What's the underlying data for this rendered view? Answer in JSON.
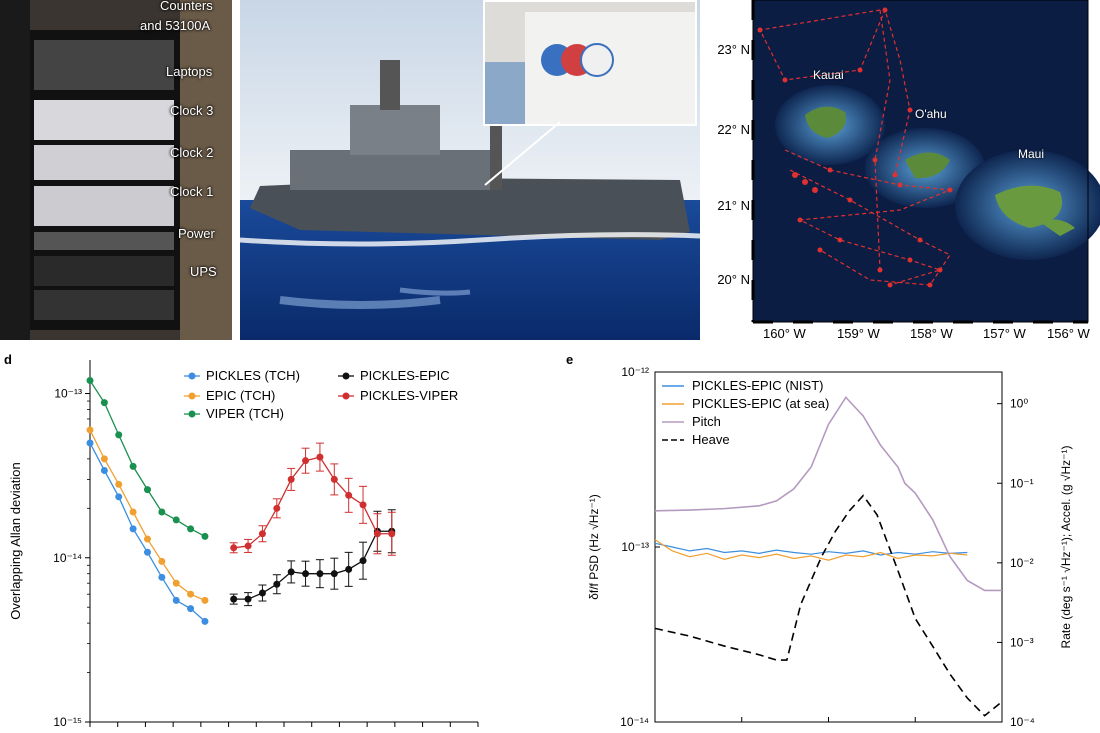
{
  "panel_a": {
    "labels": [
      "Counters",
      "and 53100A",
      "Laptops",
      "Clock 3",
      "Clock 2",
      "Clock 1",
      "Power",
      "UPS"
    ]
  },
  "panel_b": {
    "inset_logo": "icon-placeholder"
  },
  "panel_c": {
    "islands": [
      "Kauai",
      "O'ahu",
      "Maui"
    ],
    "lat_labels": [
      "23° N",
      "22° N",
      "21° N",
      "20° N"
    ],
    "lon_labels": [
      "160° W",
      "159° W",
      "158° W",
      "157° W",
      "156° W"
    ],
    "colors": {
      "track": "#e03030",
      "ocean_deep": "#0a1a40",
      "ocean_shallow": "#3a80c0"
    }
  },
  "chart_data": [
    {
      "panel": "d",
      "type": "scatter",
      "ylabel": "Overlapping Allan deviation",
      "yscale": "log",
      "ylim": [
        1e-15,
        1.6e-13
      ],
      "y_ticks": [
        {
          "value": 1e-13,
          "label": "10⁻¹³"
        },
        {
          "value": 1e-14,
          "label": "10⁻¹⁴"
        },
        {
          "value": 1e-15,
          "label": "10⁻¹⁵"
        }
      ],
      "x_index_range": [
        0,
        27
      ],
      "legend": "top",
      "series": [
        {
          "name": "PICKLES (TCH)",
          "color": "#3b8ee0",
          "x": [
            0,
            1,
            2,
            3,
            4,
            5,
            6,
            7,
            8
          ],
          "y": [
            5e-14,
            3.4e-14,
            2.35e-14,
            1.5e-14,
            1.08e-14,
            7.6e-15,
            5.5e-15,
            4.9e-15,
            4.1e-15
          ]
        },
        {
          "name": "EPIC (TCH)",
          "color": "#f0a030",
          "x": [
            0,
            1,
            2,
            3,
            4,
            5,
            6,
            7,
            8
          ],
          "y": [
            6e-14,
            4e-14,
            2.8e-14,
            1.9e-14,
            1.3e-14,
            9.5e-15,
            7e-15,
            6e-15,
            5.5e-15
          ]
        },
        {
          "name": "VIPER (TCH)",
          "color": "#1a9050",
          "x": [
            0,
            1,
            2,
            3,
            4,
            5,
            6,
            7,
            8
          ],
          "y": [
            1.2e-13,
            8.8e-14,
            5.6e-14,
            3.6e-14,
            2.6e-14,
            1.9e-14,
            1.7e-14,
            1.5e-14,
            1.35e-14
          ]
        },
        {
          "name": "PICKLES-EPIC",
          "color": "#111111",
          "x": [
            10,
            11,
            12,
            13,
            14,
            15,
            16,
            17,
            18,
            19,
            20,
            21
          ],
          "y": [
            5.6e-15,
            5.6e-15,
            6.1e-15,
            6.9e-15,
            8.2e-15,
            8e-15,
            8e-15,
            8e-15,
            8.5e-15,
            9.6e-15,
            1.45e-14,
            1.45e-14
          ]
        },
        {
          "name": "PICKLES-VIPER",
          "color": "#d03030",
          "x": [
            10,
            11,
            12,
            13,
            14,
            15,
            16,
            17,
            18,
            19,
            20,
            21
          ],
          "y": [
            1.15e-14,
            1.18e-14,
            1.4e-14,
            2e-14,
            3e-14,
            3.9e-14,
            4.1e-14,
            3e-14,
            2.4e-14,
            2.1e-14,
            1.4e-14,
            1.4e-14
          ]
        }
      ]
    },
    {
      "panel": "e",
      "type": "line",
      "ylabel": "δf/f PSD (Hz √Hz⁻¹)",
      "y2label": "Rate (deg s⁻¹ √Hz⁻¹); Accel. (g √Hz⁻¹)",
      "yscale": "log",
      "ylim": [
        1e-14,
        1e-12
      ],
      "y_ticks": [
        {
          "value": 1e-12,
          "label": "10⁻¹²"
        },
        {
          "value": 1e-13,
          "label": "10⁻¹³"
        },
        {
          "value": 1e-14,
          "label": "10⁻¹⁴"
        }
      ],
      "y2lim": [
        0.0001,
        2.5
      ],
      "y2_ticks": [
        {
          "value": 1,
          "label": "10⁰"
        },
        {
          "value": 0.1,
          "label": "10⁻¹"
        },
        {
          "value": 0.01,
          "label": "10⁻²"
        },
        {
          "value": 0.001,
          "label": "10⁻³"
        },
        {
          "value": 0.0001,
          "label": "10⁻⁴"
        }
      ],
      "legend": "top-left",
      "series": [
        {
          "name": "PICKLES-EPIC (NIST)",
          "color": "#3b8ee0",
          "axis": "left",
          "x": [
            0,
            0.05,
            0.1,
            0.15,
            0.2,
            0.25,
            0.3,
            0.35,
            0.4,
            0.45,
            0.5,
            0.55,
            0.6,
            0.65,
            0.7,
            0.75,
            0.8,
            0.85,
            0.9
          ],
          "y": [
            1.05e-13,
            1e-13,
            9.5e-14,
            9.8e-14,
            9.3e-14,
            9.5e-14,
            9.2e-14,
            9.6e-14,
            9.3e-14,
            9.1e-14,
            9.4e-14,
            9.2e-14,
            9.5e-14,
            9e-14,
            9.3e-14,
            9.1e-14,
            9.4e-14,
            9.2e-14,
            9.3e-14
          ]
        },
        {
          "name": "PICKLES-EPIC (at sea)",
          "color": "#f0a030",
          "axis": "left",
          "x": [
            0,
            0.05,
            0.1,
            0.15,
            0.2,
            0.25,
            0.3,
            0.35,
            0.4,
            0.45,
            0.5,
            0.55,
            0.6,
            0.65,
            0.7,
            0.75,
            0.8,
            0.85,
            0.9
          ],
          "y": [
            1.1e-13,
            9.5e-14,
            8.8e-14,
            9.2e-14,
            8.5e-14,
            9e-14,
            8.7e-14,
            9.1e-14,
            8.6e-14,
            8.9e-14,
            8.4e-14,
            9e-14,
            8.8e-14,
            9.3e-14,
            8.6e-14,
            9e-14,
            8.9e-14,
            9.2e-14,
            9e-14
          ]
        },
        {
          "name": "Pitch",
          "color": "#b59ac0",
          "axis": "right",
          "x": [
            0,
            0.1,
            0.2,
            0.3,
            0.35,
            0.4,
            0.45,
            0.5,
            0.55,
            0.6,
            0.65,
            0.7,
            0.72,
            0.75,
            0.8,
            0.85,
            0.9,
            0.95,
            1.0
          ],
          "y": [
            0.045,
            0.046,
            0.048,
            0.052,
            0.06,
            0.085,
            0.16,
            0.55,
            1.2,
            0.7,
            0.3,
            0.16,
            0.1,
            0.075,
            0.035,
            0.012,
            0.006,
            0.0045,
            0.0045
          ]
        },
        {
          "name": "Heave",
          "color": "#000000",
          "axis": "right",
          "dash": true,
          "x": [
            0,
            0.1,
            0.2,
            0.3,
            0.35,
            0.38,
            0.42,
            0.48,
            0.52,
            0.56,
            0.6,
            0.64,
            0.7,
            0.75,
            0.8,
            0.85,
            0.9,
            0.95,
            1.0
          ],
          "y": [
            0.0015,
            0.0012,
            0.0009,
            0.0007,
            0.0006,
            0.0006,
            0.003,
            0.012,
            0.025,
            0.045,
            0.07,
            0.04,
            0.008,
            0.002,
            0.0009,
            0.0004,
            0.0002,
            0.00012,
            0.00018
          ]
        }
      ]
    }
  ]
}
